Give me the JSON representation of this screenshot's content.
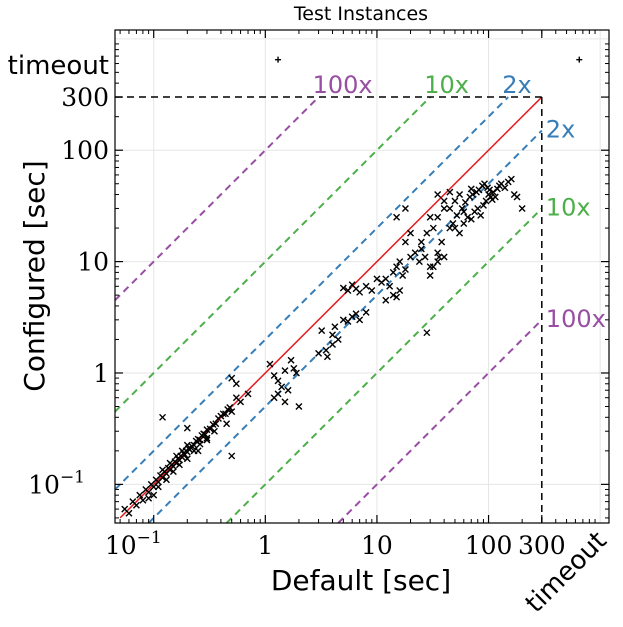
{
  "chart_data": {
    "type": "scatter",
    "title": "Test Instances",
    "xlabel": "Default [sec]",
    "ylabel": "Configured [sec]",
    "scale": "log",
    "xlim": [
      0.045,
      1200
    ],
    "ylim": [
      0.045,
      1200
    ],
    "grid": true,
    "x_ticks": [
      {
        "value": 0.1,
        "label": "10",
        "exp": "−1"
      },
      {
        "value": 1,
        "label": "1",
        "exp": ""
      },
      {
        "value": 10,
        "label": "10",
        "exp": ""
      },
      {
        "value": 100,
        "label": "100",
        "exp": ""
      },
      {
        "value": 300,
        "label": "300",
        "exp": ""
      }
    ],
    "y_ticks": [
      {
        "value": 0.1,
        "label": "10",
        "exp": "−1"
      },
      {
        "value": 1,
        "label": "1",
        "exp": ""
      },
      {
        "value": 10,
        "label": "10",
        "exp": ""
      },
      {
        "value": 100,
        "label": "100",
        "exp": ""
      },
      {
        "value": 300,
        "label": "300",
        "exp": ""
      }
    ],
    "timeout_value": 300,
    "timeout_label": "timeout",
    "reference_lines": [
      {
        "factor": 100,
        "label": "100x",
        "color": "#984ea3"
      },
      {
        "factor": 10,
        "label": "10x",
        "color": "#4daf4a"
      },
      {
        "factor": 2,
        "label": "2x",
        "color": "#377eb8"
      }
    ],
    "identity_line_color": "#e41a1c",
    "marker": "x",
    "marker_color": "#000000",
    "timeout_points": [
      [
        1.3,
        "timeout"
      ],
      [
        "timeout",
        "timeout"
      ]
    ],
    "points": [
      [
        0.055,
        0.06
      ],
      [
        0.06,
        0.055
      ],
      [
        0.065,
        0.07
      ],
      [
        0.07,
        0.065
      ],
      [
        0.075,
        0.08
      ],
      [
        0.08,
        0.072
      ],
      [
        0.085,
        0.09
      ],
      [
        0.09,
        0.085
      ],
      [
        0.095,
        0.1
      ],
      [
        0.1,
        0.095
      ],
      [
        0.105,
        0.11
      ],
      [
        0.11,
        0.105
      ],
      [
        0.115,
        0.12
      ],
      [
        0.12,
        0.115
      ],
      [
        0.125,
        0.13
      ],
      [
        0.13,
        0.125
      ],
      [
        0.135,
        0.14
      ],
      [
        0.14,
        0.135
      ],
      [
        0.145,
        0.15
      ],
      [
        0.15,
        0.145
      ],
      [
        0.155,
        0.16
      ],
      [
        0.16,
        0.155
      ],
      [
        0.165,
        0.17
      ],
      [
        0.17,
        0.165
      ],
      [
        0.175,
        0.18
      ],
      [
        0.18,
        0.175
      ],
      [
        0.185,
        0.19
      ],
      [
        0.19,
        0.185
      ],
      [
        0.195,
        0.2
      ],
      [
        0.2,
        0.195
      ],
      [
        0.205,
        0.21
      ],
      [
        0.21,
        0.205
      ],
      [
        0.22,
        0.22
      ],
      [
        0.23,
        0.225
      ],
      [
        0.24,
        0.245
      ],
      [
        0.25,
        0.255
      ],
      [
        0.26,
        0.25
      ],
      [
        0.27,
        0.275
      ],
      [
        0.28,
        0.285
      ],
      [
        0.29,
        0.28
      ],
      [
        0.3,
        0.31
      ],
      [
        0.32,
        0.315
      ],
      [
        0.34,
        0.345
      ],
      [
        0.36,
        0.35
      ],
      [
        0.38,
        0.39
      ],
      [
        0.4,
        0.41
      ],
      [
        0.42,
        0.43
      ],
      [
        0.44,
        0.43
      ],
      [
        0.46,
        0.47
      ],
      [
        0.48,
        0.49
      ],
      [
        0.09,
        0.075
      ],
      [
        0.1,
        0.08
      ],
      [
        0.11,
        0.095
      ],
      [
        0.13,
        0.11
      ],
      [
        0.15,
        0.13
      ],
      [
        0.17,
        0.15
      ],
      [
        0.2,
        0.17
      ],
      [
        0.23,
        0.2
      ],
      [
        0.26,
        0.23
      ],
      [
        0.3,
        0.26
      ],
      [
        0.12,
        0.135
      ],
      [
        0.14,
        0.155
      ],
      [
        0.16,
        0.18
      ],
      [
        0.18,
        0.2
      ],
      [
        0.2,
        0.225
      ],
      [
        0.12,
        0.4
      ],
      [
        0.2,
        0.32
      ],
      [
        0.25,
        0.2
      ],
      [
        0.3,
        0.25
      ],
      [
        0.35,
        0.3
      ],
      [
        0.5,
        0.45
      ],
      [
        0.55,
        0.6
      ],
      [
        0.6,
        0.55
      ],
      [
        0.7,
        0.65
      ],
      [
        0.5,
        0.9
      ],
      [
        0.55,
        0.8
      ],
      [
        0.5,
        0.18
      ],
      [
        0.45,
        0.35
      ],
      [
        1.1,
        1.2
      ],
      [
        1.2,
        0.95
      ],
      [
        1.3,
        0.85
      ],
      [
        1.4,
        0.75
      ],
      [
        1.5,
        1.05
      ],
      [
        1.6,
        0.7
      ],
      [
        1.7,
        1.3
      ],
      [
        1.8,
        1.1
      ],
      [
        1.2,
        0.6
      ],
      [
        1.5,
        0.55
      ],
      [
        2.0,
        0.5
      ],
      [
        1.9,
        1.0
      ],
      [
        1.3,
        0.65
      ],
      [
        3.0,
        1.5
      ],
      [
        3.5,
        1.6
      ],
      [
        4.0,
        1.8
      ],
      [
        4.5,
        2.0
      ],
      [
        3.2,
        2.4
      ],
      [
        4.2,
        2.6
      ],
      [
        5.0,
        3.0
      ],
      [
        5.5,
        2.9
      ],
      [
        6.0,
        3.2
      ],
      [
        6.5,
        3.4
      ],
      [
        7.0,
        3.0
      ],
      [
        8.0,
        3.5
      ],
      [
        3.6,
        1.4
      ],
      [
        4.0,
        2.2
      ],
      [
        5.0,
        5.8
      ],
      [
        5.5,
        5.5
      ],
      [
        6.0,
        6.2
      ],
      [
        6.5,
        5.7
      ],
      [
        7.0,
        5.3
      ],
      [
        8.0,
        6.0
      ],
      [
        12,
        7
      ],
      [
        13,
        6
      ],
      [
        14,
        8
      ],
      [
        15,
        9
      ],
      [
        16,
        10
      ],
      [
        17,
        7.5
      ],
      [
        18,
        8.5
      ],
      [
        20,
        11
      ],
      [
        22,
        12
      ],
      [
        24,
        10
      ],
      [
        25,
        13
      ],
      [
        27,
        11
      ],
      [
        14,
        5
      ],
      [
        15,
        4.8
      ],
      [
        16,
        5.5
      ],
      [
        12,
        4.5
      ],
      [
        10,
        7
      ],
      [
        11,
        6.5
      ],
      [
        9,
        5.5
      ],
      [
        28,
        2.3
      ],
      [
        30,
        9
      ],
      [
        35,
        12
      ],
      [
        38,
        15
      ],
      [
        40,
        11
      ],
      [
        50,
        20
      ],
      [
        55,
        18
      ],
      [
        60,
        22
      ],
      [
        65,
        25
      ],
      [
        70,
        24
      ],
      [
        75,
        28
      ],
      [
        80,
        30
      ],
      [
        85,
        26
      ],
      [
        90,
        32
      ],
      [
        95,
        35
      ],
      [
        100,
        40
      ],
      [
        105,
        38
      ],
      [
        110,
        42
      ],
      [
        120,
        45
      ],
      [
        125,
        48
      ],
      [
        130,
        50
      ],
      [
        140,
        46
      ],
      [
        150,
        52
      ],
      [
        160,
        55
      ],
      [
        170,
        40
      ],
      [
        180,
        38
      ],
      [
        200,
        30
      ],
      [
        45,
        30
      ],
      [
        50,
        35
      ],
      [
        55,
        40
      ],
      [
        60,
        28
      ],
      [
        70,
        45
      ],
      [
        30,
        25
      ],
      [
        32,
        20
      ],
      [
        25,
        15
      ],
      [
        28,
        18
      ],
      [
        35,
        25
      ],
      [
        40,
        30
      ],
      [
        20,
        18
      ],
      [
        18,
        15
      ],
      [
        45,
        20
      ],
      [
        48,
        22
      ],
      [
        52,
        26
      ],
      [
        58,
        30
      ],
      [
        62,
        34
      ],
      [
        68,
        38
      ],
      [
        72,
        40
      ],
      [
        78,
        42
      ],
      [
        82,
        44
      ],
      [
        88,
        48
      ],
      [
        92,
        50
      ],
      [
        98,
        46
      ],
      [
        102,
        44
      ],
      [
        108,
        36
      ],
      [
        115,
        38
      ],
      [
        35,
        10
      ],
      [
        32,
        9
      ],
      [
        36,
        11
      ],
      [
        30,
        7.5
      ],
      [
        15,
        25
      ],
      [
        18,
        30
      ],
      [
        35,
        40
      ],
      [
        40,
        35
      ],
      [
        45,
        42
      ]
    ]
  }
}
